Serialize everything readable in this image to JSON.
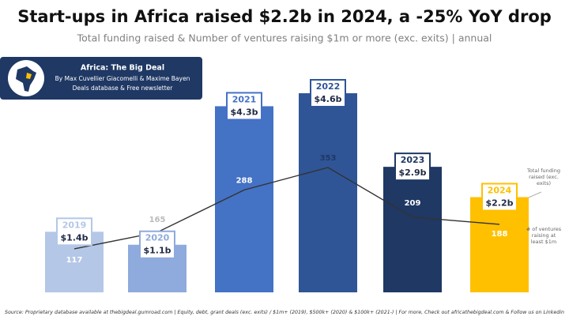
{
  "chart_data": {
    "type": "bar",
    "title": "Start-ups in Africa raised $2.2b in 2024, a -25% YoY drop",
    "subtitle": "Total funding raised & Number of ventures raising $1m or more (exc. exits) | annual",
    "brand": {
      "name": "Africa: The Big Deal",
      "authors": "By Max Cuvellier Giacomelli & Maxime Bayen",
      "tagline": "Deals database & Free newsletter"
    },
    "categories": [
      "2019",
      "2020",
      "2021",
      "2022",
      "2023",
      "2024"
    ],
    "series": [
      {
        "name": "Total funding raised (exc. exits)",
        "type": "bar",
        "values": [
          1.4,
          1.1,
          4.3,
          4.6,
          2.9,
          2.2
        ],
        "value_labels": [
          "$1.4b",
          "$1.1b",
          "$4.3b",
          "$4.6b",
          "$2.9b",
          "$2.2b"
        ],
        "colors": [
          "#b4c7e7",
          "#8faadc",
          "#4472c4",
          "#2f5597",
          "#1f3864",
          "#ffc000"
        ]
      },
      {
        "name": "# of ventures raising at least $1m",
        "type": "line",
        "color": "#333333",
        "values": [
          117,
          165,
          288,
          353,
          209,
          188
        ]
      }
    ],
    "source": "Source: Proprietary database available at thebigdeal.gumroad.com | Equity, debt, grant deals (exc. exits) / $1m+ (2019), $500k+ (2020) & $100k+ (2021-) | For more, Check out africathebigdeal.com & Follow us on Linkedin"
  }
}
